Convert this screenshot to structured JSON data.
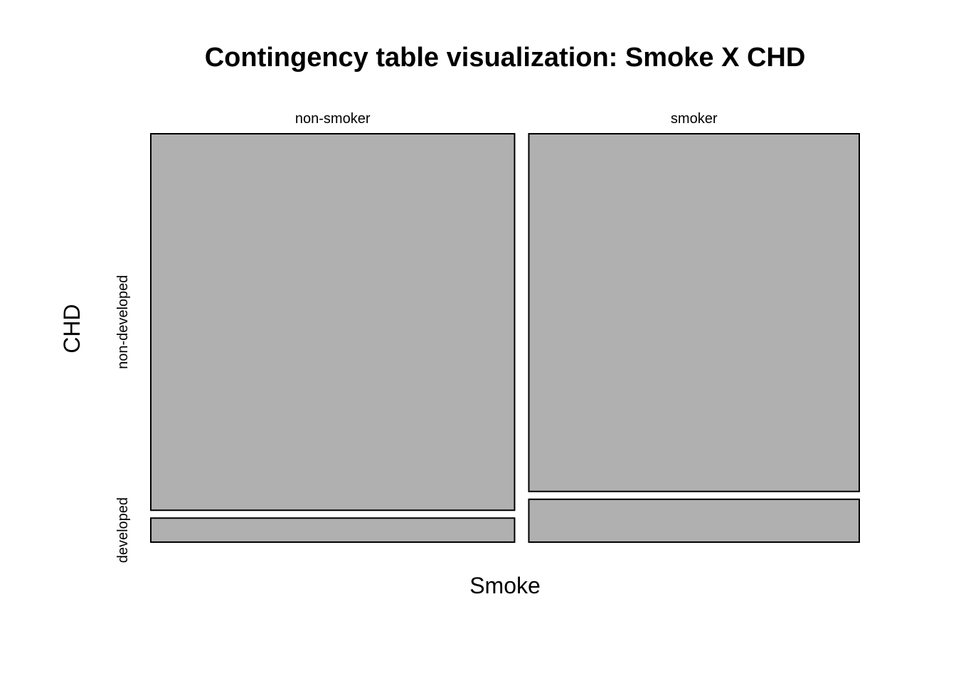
{
  "chart_data": {
    "type": "mosaic",
    "title": "Contingency table visualization: Smoke X CHD",
    "xlabel": "Smoke",
    "ylabel": "CHD",
    "x_categories": [
      "non-smoker",
      "smoker"
    ],
    "y_categories": [
      "developed",
      "non-developed"
    ],
    "column_proportions": [
      0.524,
      0.476
    ],
    "cells": [
      {
        "x": "non-smoker",
        "y": "developed",
        "proportion_within_column": 0.06
      },
      {
        "x": "non-smoker",
        "y": "non-developed",
        "proportion_within_column": 0.94
      },
      {
        "x": "smoker",
        "y": "developed",
        "proportion_within_column": 0.107
      },
      {
        "x": "smoker",
        "y": "non-developed",
        "proportion_within_column": 0.893
      }
    ],
    "fill_color": "#b0b0b0",
    "grid": false,
    "legend": "none"
  }
}
